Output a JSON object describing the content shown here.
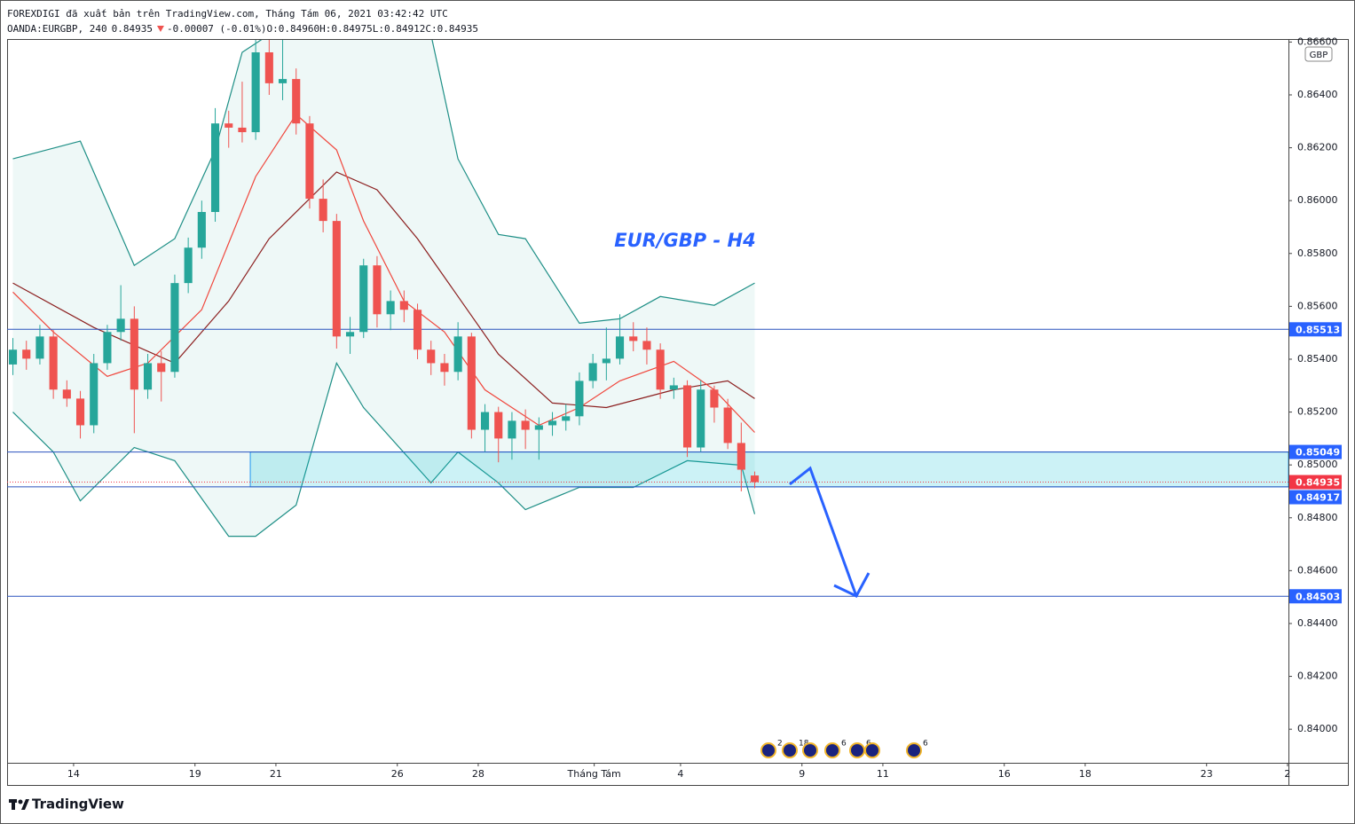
{
  "chart_data": {
    "type": "candlestick",
    "header": {
      "line1": "FOREXDIGI đã xuất bản trên TradingView.com, Tháng Tám 06, 2021 03:42:42 UTC",
      "symbol": "OANDA:EURGBP, 240",
      "last": "0.84935",
      "change": "-0.00007 (-0.01%)",
      "ohlc": [
        {
          "key": "O:",
          "val": "0.84960"
        },
        {
          "key": "H:",
          "val": "0.84975"
        },
        {
          "key": "L:",
          "val": "0.84912"
        },
        {
          "key": "C:",
          "val": "0.84935"
        }
      ]
    },
    "title": "EUR/GBP - H4",
    "currency": "GBP",
    "logo": "TradingView",
    "up_color": "#26a69a",
    "down_color": "#ef5350",
    "xlim": [
      0.07,
      95.07
    ],
    "ylim": [
      0.83873,
      0.86608
    ],
    "xticks": [
      {
        "value": 5,
        "label": "14"
      },
      {
        "value": 14,
        "label": "19"
      },
      {
        "value": 20,
        "label": "21"
      },
      {
        "value": 29,
        "label": "26"
      },
      {
        "value": 35,
        "label": "28"
      },
      {
        "value": 43.6,
        "label": "Tháng Tám"
      },
      {
        "value": 50,
        "label": "4"
      },
      {
        "value": 59,
        "label": "9"
      },
      {
        "value": 65,
        "label": "11"
      },
      {
        "value": 74,
        "label": "16"
      },
      {
        "value": 80,
        "label": "18"
      },
      {
        "value": 89,
        "label": "23"
      },
      {
        "value": 95,
        "label": "2"
      }
    ],
    "yticks": [
      {
        "value": 0.866,
        "label": "0.86600"
      },
      {
        "value": 0.864,
        "label": "0.86400"
      },
      {
        "value": 0.862,
        "label": "0.86200"
      },
      {
        "value": 0.86,
        "label": "0.86000"
      },
      {
        "value": 0.858,
        "label": "0.85800"
      },
      {
        "value": 0.856,
        "label": "0.85600"
      },
      {
        "value": 0.854,
        "label": "0.85400"
      },
      {
        "value": 0.852,
        "label": "0.85200"
      },
      {
        "value": 0.85,
        "label": "0.85000"
      },
      {
        "value": 0.848,
        "label": "0.84800"
      },
      {
        "value": 0.846,
        "label": "0.84600"
      },
      {
        "value": 0.844,
        "label": "0.84400"
      },
      {
        "value": 0.842,
        "label": "0.84200"
      },
      {
        "value": 0.84,
        "label": "0.84000"
      }
    ],
    "candles": [
      [
        0.8538,
        0.8548,
        0.8534,
        0.85436
      ],
      [
        0.85436,
        0.8547,
        0.8536,
        0.85402
      ],
      [
        0.85402,
        0.8553,
        0.8538,
        0.85486
      ],
      [
        0.85486,
        0.8551,
        0.8525,
        0.85285
      ],
      [
        0.85285,
        0.8532,
        0.8522,
        0.85251
      ],
      [
        0.85251,
        0.8528,
        0.851,
        0.8515
      ],
      [
        0.8515,
        0.8542,
        0.8512,
        0.85385
      ],
      [
        0.85385,
        0.8553,
        0.8536,
        0.85503
      ],
      [
        0.85503,
        0.8568,
        0.8547,
        0.85553
      ],
      [
        0.85553,
        0.856,
        0.8512,
        0.85285
      ],
      [
        0.85285,
        0.8542,
        0.8525,
        0.85385
      ],
      [
        0.85385,
        0.8543,
        0.8524,
        0.85352
      ],
      [
        0.85352,
        0.8572,
        0.8533,
        0.85688
      ],
      [
        0.85688,
        0.8586,
        0.8565,
        0.85822
      ],
      [
        0.85822,
        0.86,
        0.8578,
        0.85957
      ],
      [
        0.85957,
        0.8635,
        0.8592,
        0.86292
      ],
      [
        0.86292,
        0.8634,
        0.862,
        0.86276
      ],
      [
        0.86276,
        0.8645,
        0.8622,
        0.86259
      ],
      [
        0.86259,
        0.8662,
        0.8623,
        0.86561
      ],
      [
        0.86561,
        0.8661,
        0.864,
        0.86444
      ],
      [
        0.86444,
        0.8662,
        0.8638,
        0.8646
      ],
      [
        0.8646,
        0.865,
        0.8625,
        0.86292
      ],
      [
        0.86292,
        0.8632,
        0.8597,
        0.86007
      ],
      [
        0.86007,
        0.8608,
        0.8588,
        0.85923
      ],
      [
        0.85923,
        0.8595,
        0.8544,
        0.85486
      ],
      [
        0.85486,
        0.8556,
        0.8542,
        0.85503
      ],
      [
        0.85503,
        0.8578,
        0.8548,
        0.85755
      ],
      [
        0.85755,
        0.8579,
        0.8552,
        0.8557
      ],
      [
        0.8557,
        0.8566,
        0.8551,
        0.8562
      ],
      [
        0.8562,
        0.8566,
        0.8554,
        0.85587
      ],
      [
        0.85587,
        0.8561,
        0.854,
        0.85436
      ],
      [
        0.85436,
        0.8547,
        0.8534,
        0.85385
      ],
      [
        0.85385,
        0.8542,
        0.853,
        0.85352
      ],
      [
        0.85352,
        0.8554,
        0.8532,
        0.85486
      ],
      [
        0.85486,
        0.855,
        0.851,
        0.85133
      ],
      [
        0.85133,
        0.8523,
        0.8505,
        0.852
      ],
      [
        0.852,
        0.8522,
        0.8501,
        0.851
      ],
      [
        0.851,
        0.852,
        0.8502,
        0.85167
      ],
      [
        0.85167,
        0.8521,
        0.8506,
        0.85133
      ],
      [
        0.85133,
        0.8518,
        0.8502,
        0.8515
      ],
      [
        0.8515,
        0.852,
        0.8511,
        0.85167
      ],
      [
        0.85167,
        0.8523,
        0.8513,
        0.85184
      ],
      [
        0.85184,
        0.8535,
        0.8515,
        0.85318
      ],
      [
        0.85318,
        0.8542,
        0.8529,
        0.85385
      ],
      [
        0.85385,
        0.8552,
        0.8532,
        0.85402
      ],
      [
        0.85402,
        0.8557,
        0.8538,
        0.85486
      ],
      [
        0.85486,
        0.8554,
        0.8543,
        0.85469
      ],
      [
        0.85469,
        0.8552,
        0.8538,
        0.85436
      ],
      [
        0.85436,
        0.8546,
        0.8525,
        0.85285
      ],
      [
        0.85285,
        0.8533,
        0.8525,
        0.85301
      ],
      [
        0.85301,
        0.8532,
        0.8503,
        0.85066
      ],
      [
        0.85066,
        0.8532,
        0.8505,
        0.85285
      ],
      [
        0.85285,
        0.853,
        0.8516,
        0.85217
      ],
      [
        0.85217,
        0.8525,
        0.8506,
        0.85083
      ],
      [
        0.85083,
        0.8516,
        0.849,
        0.84982
      ],
      [
        0.8496,
        0.84975,
        0.84912,
        0.84935
      ]
    ],
    "bands": {
      "color": "#1e8f86",
      "upper": {
        "x": [
          0,
          5,
          9,
          12,
          15,
          17,
          19,
          31,
          33,
          36,
          38,
          42,
          45,
          48,
          52,
          55
        ],
        "values": [
          0.86158,
          0.86225,
          0.85755,
          0.85856,
          0.86192,
          0.86561,
          0.86628,
          0.86628,
          0.86158,
          0.85872,
          0.85856,
          0.85536,
          0.85553,
          0.85637,
          0.85604,
          0.85688
        ]
      },
      "lower": {
        "x": [
          0,
          3,
          5,
          9,
          12,
          16,
          18,
          21,
          24,
          26,
          31,
          33,
          36,
          38,
          42,
          46,
          50,
          54,
          55
        ],
        "values": [
          0.852,
          0.85049,
          0.84864,
          0.85066,
          0.85016,
          0.8473,
          0.8473,
          0.84848,
          0.85385,
          0.85217,
          0.84932,
          0.85049,
          0.84932,
          0.84831,
          0.84915,
          0.84915,
          0.85016,
          0.84999,
          0.84814
        ]
      }
    },
    "indicators": [
      {
        "color": "#8b1e1e",
        "x": [
          0,
          6,
          12,
          16,
          19,
          24,
          27,
          30,
          36,
          40,
          44,
          49,
          53,
          55
        ],
        "values": [
          0.85688,
          0.8552,
          0.85385,
          0.8562,
          0.85856,
          0.86108,
          0.86041,
          0.85856,
          0.85419,
          0.85234,
          0.85217,
          0.85284,
          0.85318,
          0.85251
        ]
      },
      {
        "color": "#f0463c",
        "x": [
          0,
          3,
          7,
          10,
          14,
          18,
          21,
          24,
          26,
          29,
          32,
          35,
          39,
          42,
          45,
          49,
          52,
          55
        ],
        "values": [
          0.85654,
          0.85503,
          0.85335,
          0.85385,
          0.85587,
          0.86091,
          0.86326,
          0.86192,
          0.85923,
          0.8562,
          0.85503,
          0.85284,
          0.8515,
          0.85217,
          0.85318,
          0.85392,
          0.85284,
          0.85123
        ]
      }
    ],
    "levels": [
      {
        "value": 0.85513,
        "label": "0.85513"
      },
      {
        "value": 0.85049,
        "label": "0.85049"
      },
      {
        "value": 0.84917,
        "label": "0.84917"
      },
      {
        "value": 0.84503,
        "label": "0.84503"
      }
    ],
    "zone": {
      "start": 18.1,
      "top": 0.85049,
      "bottom": 0.84917
    },
    "last_price": {
      "value": 0.84935,
      "label": "0.84935",
      "color": "#f23645"
    },
    "events": [
      "2",
      "18",
      "6",
      "6",
      "6"
    ]
  }
}
